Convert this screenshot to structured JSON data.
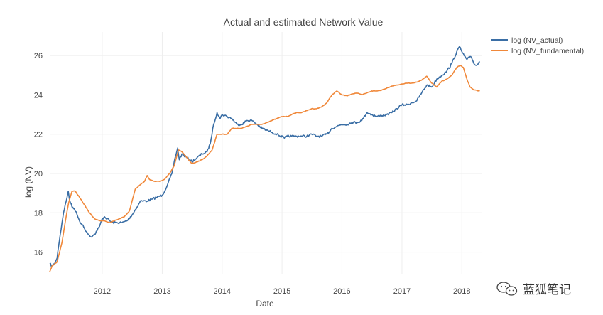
{
  "chart_data": {
    "type": "line",
    "title": "Actual and estimated Network Value",
    "xlabel": "Date",
    "ylabel": "log (NV)",
    "x_ticks": [
      "2012",
      "2013",
      "2014",
      "2015",
      "2016",
      "2017",
      "2018"
    ],
    "y_ticks": [
      16,
      18,
      20,
      22,
      24,
      26
    ],
    "xlim": [
      "2011-02-15",
      "2018-05-01"
    ],
    "ylim": [
      14.9,
      27.2
    ],
    "grid": true,
    "legend_position": "top-right",
    "series": [
      {
        "name": "log (NV_actual)",
        "color": "#3a6ea5",
        "points": [
          [
            "2011-02-15",
            15.4
          ],
          [
            "2011-03-01",
            15.3
          ],
          [
            "2011-03-15",
            15.4
          ],
          [
            "2011-04-01",
            15.7
          ],
          [
            "2011-04-10",
            16.3
          ],
          [
            "2011-04-20",
            16.9
          ],
          [
            "2011-05-01",
            17.5
          ],
          [
            "2011-05-10",
            18.0
          ],
          [
            "2011-05-20",
            18.4
          ],
          [
            "2011-06-01",
            18.8
          ],
          [
            "2011-06-08",
            19.1
          ],
          [
            "2011-06-15",
            18.7
          ],
          [
            "2011-07-01",
            18.3
          ],
          [
            "2011-07-15",
            18.2
          ],
          [
            "2011-08-01",
            17.9
          ],
          [
            "2011-08-15",
            17.6
          ],
          [
            "2011-09-01",
            17.4
          ],
          [
            "2011-09-15",
            17.2
          ],
          [
            "2011-10-01",
            17.0
          ],
          [
            "2011-10-15",
            16.85
          ],
          [
            "2011-11-01",
            16.8
          ],
          [
            "2011-11-15",
            16.9
          ],
          [
            "2011-12-01",
            17.1
          ],
          [
            "2011-12-15",
            17.3
          ],
          [
            "2012-01-01",
            17.7
          ],
          [
            "2012-01-15",
            17.8
          ],
          [
            "2012-02-01",
            17.7
          ],
          [
            "2012-03-01",
            17.5
          ],
          [
            "2012-04-01",
            17.5
          ],
          [
            "2012-05-01",
            17.5
          ],
          [
            "2012-06-01",
            17.6
          ],
          [
            "2012-07-01",
            17.9
          ],
          [
            "2012-08-01",
            18.3
          ],
          [
            "2012-08-20",
            18.6
          ],
          [
            "2012-09-01",
            18.6
          ],
          [
            "2012-10-01",
            18.6
          ],
          [
            "2012-11-01",
            18.7
          ],
          [
            "2012-12-01",
            18.8
          ],
          [
            "2013-01-01",
            18.9
          ],
          [
            "2013-02-01",
            19.4
          ],
          [
            "2013-03-01",
            20.0
          ],
          [
            "2013-03-20",
            20.8
          ],
          [
            "2013-04-05",
            21.3
          ],
          [
            "2013-04-15",
            20.7
          ],
          [
            "2013-05-01",
            21.0
          ],
          [
            "2013-06-01",
            20.8
          ],
          [
            "2013-07-01",
            20.6
          ],
          [
            "2013-08-01",
            20.8
          ],
          [
            "2013-09-01",
            21.0
          ],
          [
            "2013-10-01",
            21.1
          ],
          [
            "2013-10-20",
            21.5
          ],
          [
            "2013-11-10",
            22.5
          ],
          [
            "2013-12-01",
            23.1
          ],
          [
            "2013-12-20",
            22.8
          ],
          [
            "2014-01-01",
            23.0
          ],
          [
            "2014-02-01",
            22.9
          ],
          [
            "2014-03-01",
            22.8
          ],
          [
            "2014-04-01",
            22.5
          ],
          [
            "2014-05-01",
            22.5
          ],
          [
            "2014-06-01",
            22.7
          ],
          [
            "2014-07-01",
            22.7
          ],
          [
            "2014-08-01",
            22.5
          ],
          [
            "2014-09-01",
            22.3
          ],
          [
            "2014-10-01",
            22.2
          ],
          [
            "2014-11-01",
            22.1
          ],
          [
            "2014-12-01",
            22.0
          ],
          [
            "2015-01-15",
            21.8
          ],
          [
            "2015-02-01",
            21.9
          ],
          [
            "2015-03-01",
            21.9
          ],
          [
            "2015-04-01",
            21.9
          ],
          [
            "2015-05-01",
            21.9
          ],
          [
            "2015-06-01",
            21.9
          ],
          [
            "2015-07-01",
            22.0
          ],
          [
            "2015-08-01",
            21.9
          ],
          [
            "2015-09-01",
            21.9
          ],
          [
            "2015-10-01",
            22.0
          ],
          [
            "2015-11-01",
            22.3
          ],
          [
            "2015-12-01",
            22.4
          ],
          [
            "2016-01-01",
            22.5
          ],
          [
            "2016-02-01",
            22.5
          ],
          [
            "2016-03-01",
            22.6
          ],
          [
            "2016-04-01",
            22.6
          ],
          [
            "2016-05-01",
            22.7
          ],
          [
            "2016-06-01",
            23.1
          ],
          [
            "2016-07-01",
            23.0
          ],
          [
            "2016-08-01",
            22.9
          ],
          [
            "2016-09-01",
            22.95
          ],
          [
            "2016-10-01",
            23.0
          ],
          [
            "2016-11-01",
            23.1
          ],
          [
            "2016-12-01",
            23.3
          ],
          [
            "2017-01-01",
            23.5
          ],
          [
            "2017-02-01",
            23.5
          ],
          [
            "2017-03-01",
            23.6
          ],
          [
            "2017-04-01",
            23.7
          ],
          [
            "2017-05-01",
            24.1
          ],
          [
            "2017-06-01",
            24.5
          ],
          [
            "2017-07-01",
            24.4
          ],
          [
            "2017-08-01",
            24.8
          ],
          [
            "2017-09-01",
            25.0
          ],
          [
            "2017-10-01",
            25.2
          ],
          [
            "2017-11-01",
            25.6
          ],
          [
            "2017-12-01",
            26.2
          ],
          [
            "2017-12-17",
            26.45
          ],
          [
            "2018-01-01",
            26.2
          ],
          [
            "2018-01-15",
            26.0
          ],
          [
            "2018-02-01",
            25.8
          ],
          [
            "2018-02-15",
            25.9
          ],
          [
            "2018-03-01",
            25.9
          ],
          [
            "2018-03-15",
            25.6
          ],
          [
            "2018-04-01",
            25.5
          ],
          [
            "2018-04-20",
            25.7
          ]
        ]
      },
      {
        "name": "log (NV_fundamental)",
        "color": "#f0883a",
        "points": [
          [
            "2011-02-15",
            15.0
          ],
          [
            "2011-03-01",
            15.3
          ],
          [
            "2011-04-01",
            15.5
          ],
          [
            "2011-05-01",
            16.5
          ],
          [
            "2011-05-20",
            17.5
          ],
          [
            "2011-06-10",
            18.5
          ],
          [
            "2011-07-01",
            19.1
          ],
          [
            "2011-07-20",
            19.1
          ],
          [
            "2011-08-15",
            18.8
          ],
          [
            "2011-09-15",
            18.4
          ],
          [
            "2011-10-15",
            18.0
          ],
          [
            "2011-11-15",
            17.7
          ],
          [
            "2011-12-15",
            17.6
          ],
          [
            "2012-01-15",
            17.6
          ],
          [
            "2012-02-15",
            17.5
          ],
          [
            "2012-03-15",
            17.6
          ],
          [
            "2012-04-15",
            17.7
          ],
          [
            "2012-05-15",
            17.8
          ],
          [
            "2012-06-15",
            18.1
          ],
          [
            "2012-07-01",
            18.6
          ],
          [
            "2012-07-20",
            19.2
          ],
          [
            "2012-08-15",
            19.4
          ],
          [
            "2012-09-15",
            19.6
          ],
          [
            "2012-10-01",
            19.9
          ],
          [
            "2012-10-15",
            19.7
          ],
          [
            "2012-11-15",
            19.6
          ],
          [
            "2012-12-15",
            19.6
          ],
          [
            "2013-01-15",
            19.7
          ],
          [
            "2013-02-15",
            20.0
          ],
          [
            "2013-03-15",
            20.4
          ],
          [
            "2013-04-10",
            21.2
          ],
          [
            "2013-05-01",
            21.1
          ],
          [
            "2013-06-01",
            20.8
          ],
          [
            "2013-07-01",
            20.5
          ],
          [
            "2013-08-01",
            20.6
          ],
          [
            "2013-09-01",
            20.7
          ],
          [
            "2013-10-01",
            20.9
          ],
          [
            "2013-11-01",
            21.2
          ],
          [
            "2013-12-01",
            22.0
          ],
          [
            "2014-01-01",
            22.0
          ],
          [
            "2014-02-01",
            22.0
          ],
          [
            "2014-03-01",
            22.3
          ],
          [
            "2014-04-01",
            22.3
          ],
          [
            "2014-05-01",
            22.3
          ],
          [
            "2014-06-01",
            22.4
          ],
          [
            "2014-07-01",
            22.5
          ],
          [
            "2014-08-01",
            22.5
          ],
          [
            "2014-09-01",
            22.5
          ],
          [
            "2014-10-01",
            22.6
          ],
          [
            "2014-11-01",
            22.7
          ],
          [
            "2014-12-01",
            22.8
          ],
          [
            "2015-01-01",
            22.9
          ],
          [
            "2015-02-01",
            22.9
          ],
          [
            "2015-03-01",
            23.0
          ],
          [
            "2015-04-01",
            23.1
          ],
          [
            "2015-05-01",
            23.1
          ],
          [
            "2015-06-01",
            23.2
          ],
          [
            "2015-07-01",
            23.3
          ],
          [
            "2015-08-01",
            23.3
          ],
          [
            "2015-09-01",
            23.4
          ],
          [
            "2015-10-01",
            23.6
          ],
          [
            "2015-11-01",
            24.0
          ],
          [
            "2015-12-01",
            24.2
          ],
          [
            "2016-01-01",
            24.0
          ],
          [
            "2016-02-01",
            23.95
          ],
          [
            "2016-03-01",
            24.05
          ],
          [
            "2016-04-01",
            24.1
          ],
          [
            "2016-05-01",
            24.0
          ],
          [
            "2016-06-01",
            24.1
          ],
          [
            "2016-07-01",
            24.2
          ],
          [
            "2016-08-01",
            24.2
          ],
          [
            "2016-09-01",
            24.25
          ],
          [
            "2016-10-01",
            24.35
          ],
          [
            "2016-11-01",
            24.45
          ],
          [
            "2016-12-01",
            24.5
          ],
          [
            "2017-01-01",
            24.55
          ],
          [
            "2017-02-01",
            24.6
          ],
          [
            "2017-03-01",
            24.6
          ],
          [
            "2017-04-01",
            24.65
          ],
          [
            "2017-05-01",
            24.75
          ],
          [
            "2017-06-01",
            24.95
          ],
          [
            "2017-07-01",
            24.6
          ],
          [
            "2017-08-01",
            24.4
          ],
          [
            "2017-09-01",
            24.7
          ],
          [
            "2017-10-01",
            24.8
          ],
          [
            "2017-11-01",
            25.0
          ],
          [
            "2017-12-01",
            25.4
          ],
          [
            "2017-12-20",
            25.5
          ],
          [
            "2018-01-10",
            25.4
          ],
          [
            "2018-02-01",
            24.8
          ],
          [
            "2018-02-20",
            24.4
          ],
          [
            "2018-03-15",
            24.25
          ],
          [
            "2018-04-20",
            24.2
          ]
        ]
      }
    ]
  },
  "watermark": {
    "text": "蓝狐笔记",
    "icon": "wechat-icon"
  }
}
